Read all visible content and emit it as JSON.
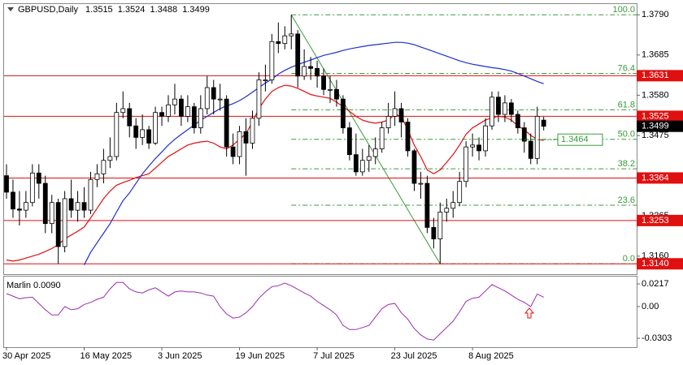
{
  "chart_data": [
    {
      "type": "candlestick",
      "title": "GBPUSD,Daily",
      "categories": [
        "30 Apr 2025",
        null,
        null,
        null,
        null,
        null,
        null,
        null,
        null,
        null,
        null,
        null,
        "16 May 2025",
        null,
        null,
        null,
        null,
        null,
        null,
        null,
        null,
        null,
        null,
        null,
        "3 Jun 2025",
        null,
        null,
        null,
        null,
        null,
        null,
        null,
        null,
        null,
        null,
        null,
        "19 Jun 2025",
        null,
        null,
        null,
        null,
        null,
        null,
        null,
        null,
        null,
        null,
        null,
        "7 Jul 2025",
        null,
        null,
        null,
        null,
        null,
        null,
        null,
        null,
        null,
        null,
        null,
        "23 Jul 2025",
        null,
        null,
        null,
        null,
        null,
        null,
        null,
        null,
        null,
        null,
        null,
        "8 Aug 2025",
        null,
        null,
        null,
        null,
        null,
        null,
        null,
        null,
        null,
        null,
        null
      ],
      "ohlc": {
        "open": [
          1.337,
          1.3327,
          1.3283,
          1.328,
          1.33,
          1.3377,
          1.335,
          1.3245,
          1.33,
          1.3185,
          1.331,
          1.328,
          1.33,
          1.328,
          1.336,
          1.3375,
          1.341,
          1.342,
          1.3535,
          1.3545,
          1.35,
          1.347,
          1.349,
          1.3455,
          1.3535,
          1.3525,
          1.3555,
          1.357,
          1.3525,
          1.355,
          1.3495,
          1.3545,
          1.36,
          1.357,
          1.357,
          1.3445,
          1.342,
          1.3485,
          1.3455,
          1.352,
          1.362,
          1.362,
          1.372,
          1.3715,
          1.3735,
          1.374,
          1.363,
          1.3655,
          1.365,
          1.363,
          1.3595,
          1.3595,
          1.357,
          1.3495,
          1.3425,
          1.338,
          1.341,
          1.342,
          1.344,
          1.3495,
          1.3525,
          1.3545,
          1.351,
          1.3435,
          1.335,
          1.335,
          1.3235,
          1.3205,
          1.3275,
          1.3285,
          1.33,
          1.3355,
          1.3445,
          1.345,
          1.3435,
          1.35,
          1.3575,
          1.353,
          1.356,
          1.353,
          1.3495,
          1.346,
          1.3415,
          1.3515
        ],
        "high": [
          1.34,
          1.336,
          1.333,
          1.333,
          1.34,
          1.34,
          1.337,
          1.332,
          1.331,
          1.333,
          1.336,
          1.333,
          1.334,
          1.338,
          1.34,
          1.344,
          1.347,
          1.356,
          1.359,
          1.356,
          1.352,
          1.353,
          1.35,
          1.355,
          1.355,
          1.358,
          1.361,
          1.358,
          1.358,
          1.356,
          1.358,
          1.363,
          1.362,
          1.361,
          1.358,
          1.348,
          1.35,
          1.352,
          1.354,
          1.364,
          1.366,
          1.374,
          1.377,
          1.376,
          1.379,
          1.375,
          1.37,
          1.368,
          1.367,
          1.365,
          1.363,
          1.362,
          1.358,
          1.351,
          1.348,
          1.344,
          1.345,
          1.347,
          1.351,
          1.356,
          1.359,
          1.356,
          1.352,
          1.344,
          1.338,
          1.337,
          1.326,
          1.33,
          1.331,
          1.333,
          1.338,
          1.346,
          1.348,
          1.347,
          1.352,
          1.359,
          1.359,
          1.358,
          1.357,
          1.354,
          1.351,
          1.348,
          1.355,
          1.3524
        ],
        "low": [
          1.331,
          1.326,
          1.324,
          1.326,
          1.329,
          1.331,
          1.322,
          1.322,
          1.314,
          1.317,
          1.326,
          1.325,
          1.326,
          1.327,
          1.334,
          1.335,
          1.339,
          1.341,
          1.352,
          1.347,
          1.344,
          1.345,
          1.344,
          1.345,
          1.35,
          1.351,
          1.353,
          1.35,
          1.351,
          1.348,
          1.348,
          1.353,
          1.353,
          1.354,
          1.342,
          1.34,
          1.34,
          1.337,
          1.344,
          1.35,
          1.359,
          1.361,
          1.369,
          1.37,
          1.37,
          1.36,
          1.362,
          1.362,
          1.36,
          1.358,
          1.356,
          1.355,
          1.348,
          1.341,
          1.337,
          1.337,
          1.338,
          1.34,
          1.343,
          1.348,
          1.35,
          1.347,
          1.342,
          1.333,
          1.331,
          1.322,
          1.318,
          1.314,
          1.325,
          1.326,
          1.329,
          1.334,
          1.342,
          1.341,
          1.342,
          1.349,
          1.351,
          1.351,
          1.351,
          1.348,
          1.343,
          1.34,
          1.34,
          1.3488
        ],
        "close": [
          1.3327,
          1.3283,
          1.328,
          1.33,
          1.3377,
          1.335,
          1.3245,
          1.33,
          1.3185,
          1.331,
          1.328,
          1.33,
          1.328,
          1.336,
          1.3375,
          1.341,
          1.342,
          1.3535,
          1.3545,
          1.35,
          1.347,
          1.349,
          1.3455,
          1.3535,
          1.3525,
          1.3555,
          1.357,
          1.3525,
          1.355,
          1.3495,
          1.3545,
          1.36,
          1.357,
          1.357,
          1.3445,
          1.342,
          1.3485,
          1.3455,
          1.352,
          1.362,
          1.362,
          1.372,
          1.3715,
          1.3735,
          1.374,
          1.363,
          1.3655,
          1.365,
          1.363,
          1.3595,
          1.3595,
          1.357,
          1.3495,
          1.3425,
          1.338,
          1.341,
          1.342,
          1.344,
          1.3495,
          1.3525,
          1.3545,
          1.351,
          1.3435,
          1.335,
          1.335,
          1.3235,
          1.3205,
          1.3275,
          1.3285,
          1.33,
          1.3355,
          1.3445,
          1.345,
          1.3435,
          1.35,
          1.3575,
          1.353,
          1.356,
          1.353,
          1.3495,
          1.346,
          1.3415,
          1.3525,
          1.3499
        ]
      },
      "lines": [
        {
          "color": "#e01010",
          "values": [
            1.315,
            1.3147,
            1.315,
            1.3155,
            1.316,
            1.3165,
            1.3172,
            1.318,
            1.319,
            1.3205,
            1.3215,
            1.3225,
            1.3236,
            1.326,
            1.3285,
            1.331,
            1.333,
            1.3345,
            1.3352,
            1.3358,
            1.3365,
            1.337,
            1.3375,
            1.339,
            1.3405,
            1.342,
            1.343,
            1.344,
            1.345,
            1.3455,
            1.3458,
            1.346,
            1.3455,
            1.3445,
            1.344,
            1.345,
            1.3465,
            1.348,
            1.351,
            1.3545,
            1.357,
            1.359,
            1.36,
            1.3606,
            1.3604,
            1.3598,
            1.359,
            1.3582,
            1.3578,
            1.3575,
            1.3572,
            1.3562,
            1.355,
            1.3538,
            1.3525,
            1.3515,
            1.351,
            1.3507,
            1.351,
            1.3515,
            1.353,
            1.3525,
            1.349,
            1.345,
            1.342,
            1.3385,
            1.3375,
            1.3385,
            1.3405,
            1.3425,
            1.345,
            1.3478,
            1.3495,
            1.3505,
            1.3515,
            1.3521,
            1.3525,
            1.3523,
            1.3515,
            1.35,
            1.349,
            1.3475,
            1.3465,
            1.3462
          ]
        },
        {
          "color": "#1f2fd0",
          "values": [
            null,
            null,
            null,
            null,
            null,
            null,
            null,
            null,
            null,
            null,
            null,
            null,
            1.3137,
            1.317,
            1.3195,
            1.322,
            1.3245,
            1.3275,
            1.3305,
            1.3325,
            1.335,
            1.3375,
            1.3395,
            1.3415,
            1.3432,
            1.345,
            1.3465,
            1.3478,
            1.349,
            1.3502,
            1.3515,
            1.3525,
            1.3535,
            1.3545,
            1.3552,
            1.3558,
            1.3566,
            1.3576,
            1.3588,
            1.36,
            1.3612,
            1.3622,
            1.3635,
            1.3645,
            1.3653,
            1.366,
            1.3666,
            1.3672,
            1.3678,
            1.3684,
            1.3688,
            1.3692,
            1.3697,
            1.3701,
            1.3704,
            1.3707,
            1.371,
            1.3712,
            1.3714,
            1.3716,
            1.3718,
            1.3718,
            1.3716,
            1.3712,
            1.3706,
            1.37,
            1.3694,
            1.3688,
            1.3682,
            1.3676,
            1.367,
            1.3665,
            1.3661,
            1.3658,
            1.3655,
            1.3652,
            1.365,
            1.3647,
            1.3643,
            1.3637,
            1.363,
            1.3623,
            1.3616,
            1.361
          ]
        }
      ],
      "levels": [
        1.3631,
        1.3525,
        1.3364,
        1.3253,
        {
          "value": 1.314,
          "label": "1.3140"
        }
      ],
      "level_color": "#e01010",
      "fib": {
        "color": "#3a9a3a",
        "levels": [
          {
            "value": 1.379,
            "label": "100.0"
          },
          {
            "value": 1.3637,
            "label": "76.4"
          },
          {
            "value": 1.3542,
            "label": "61.8"
          },
          {
            "value": 1.3465,
            "label": "50.0"
          },
          {
            "value": 1.3388,
            "label": "38.2"
          },
          {
            "value": 1.3293,
            "label": "23.6"
          },
          {
            "value": 1.314,
            "label": "0.0"
          }
        ]
      },
      "price_label": 1.3464,
      "ylim": [
        1.3113,
        1.3818
      ],
      "yticks": [
        {
          "value": 1.379,
          "label": "1.3790"
        },
        1.3685,
        {
          "value": 1.358,
          "label": "1.3580"
        },
        1.3475,
        1.3265,
        {
          "value": 1.316,
          "label": "1.3160"
        }
      ]
    },
    {
      "type": "line",
      "title": "Marlin 0.0090",
      "color": "#9a2fb0",
      "values": [
        0.0124,
        0.01,
        0.0075,
        0.0085,
        0.009,
        0.003,
        -0.003,
        -0.008,
        -0.008,
        0.0,
        -0.003,
        -0.002,
        0.002,
        0.004,
        0.007,
        0.009,
        0.017,
        0.023,
        0.023,
        0.017,
        0.014,
        0.013,
        0.016,
        0.018,
        0.014,
        0.01,
        0.014,
        0.015,
        0.014,
        0.014,
        0.013,
        0.011,
        0.01,
        0.0,
        -0.007,
        -0.011,
        -0.01,
        -0.006,
        0.0,
        0.008,
        0.014,
        0.019,
        0.02,
        0.0225,
        0.02,
        0.0165,
        0.013,
        0.01,
        0.005,
        0.001,
        -0.003,
        -0.008,
        -0.018,
        -0.022,
        -0.022,
        -0.02,
        -0.018,
        -0.01,
        -0.002,
        0.002,
        0.003,
        -0.006,
        -0.012,
        -0.021,
        -0.027,
        -0.031,
        -0.032,
        -0.026,
        -0.02,
        -0.014,
        -0.005,
        0.005,
        0.008,
        0.009,
        0.015,
        0.021,
        0.018,
        0.015,
        0.011,
        0.007,
        0.004,
        0.0,
        0.012,
        0.009
      ],
      "ylim": [
        -0.0388,
        0.0287
      ],
      "yticks": [
        0.0217,
        {
          "value": 0,
          "label": "0.00"
        },
        -0.0303
      ]
    }
  ]
}
